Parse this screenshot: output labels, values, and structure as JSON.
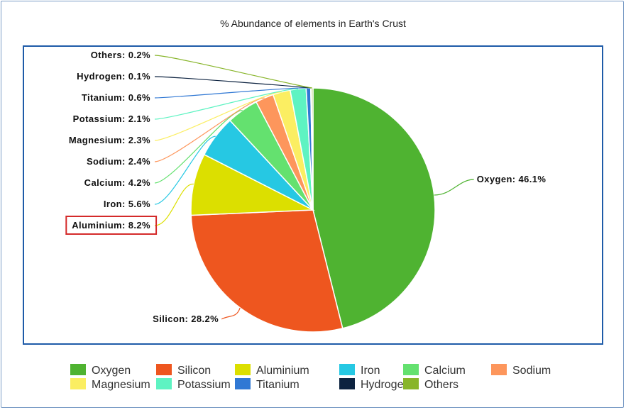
{
  "chart_data": {
    "type": "pie",
    "title": "% Abundance of elements in Earth's Crust",
    "slices": [
      {
        "name": "Oxygen",
        "value": 46.1,
        "label": "Oxygen: 46.1%",
        "color": "#4fb331"
      },
      {
        "name": "Silicon",
        "value": 28.2,
        "label": "Silicon: 28.2%",
        "color": "#ee561f"
      },
      {
        "name": "Aluminium",
        "value": 8.2,
        "label": "Aluminium: 8.2%",
        "color": "#dcdf00"
      },
      {
        "name": "Iron",
        "value": 5.6,
        "label": "Iron: 5.6%",
        "color": "#26c8e3"
      },
      {
        "name": "Calcium",
        "value": 4.2,
        "label": "Calcium: 4.2%",
        "color": "#64e16f"
      },
      {
        "name": "Sodium",
        "value": 2.4,
        "label": "Sodium: 2.4%",
        "color": "#fd965c"
      },
      {
        "name": "Magnesium",
        "value": 2.3,
        "label": "Magnesium: 2.3%",
        "color": "#fbee62"
      },
      {
        "name": "Potassium",
        "value": 2.1,
        "label": "Potassium: 2.1%",
        "color": "#5ef3c2"
      },
      {
        "name": "Titanium",
        "value": 0.6,
        "label": "Titanium: 0.6%",
        "color": "#3078d4"
      },
      {
        "name": "Hydrogen",
        "value": 0.1,
        "label": "Hydrogen: 0.1%",
        "color": "#0d2340"
      },
      {
        "name": "Others",
        "value": 0.2,
        "label": "Others: 0.2%",
        "color": "#88b52a"
      }
    ],
    "highlighted_label": "Aluminium",
    "legend_position": "bottom"
  }
}
